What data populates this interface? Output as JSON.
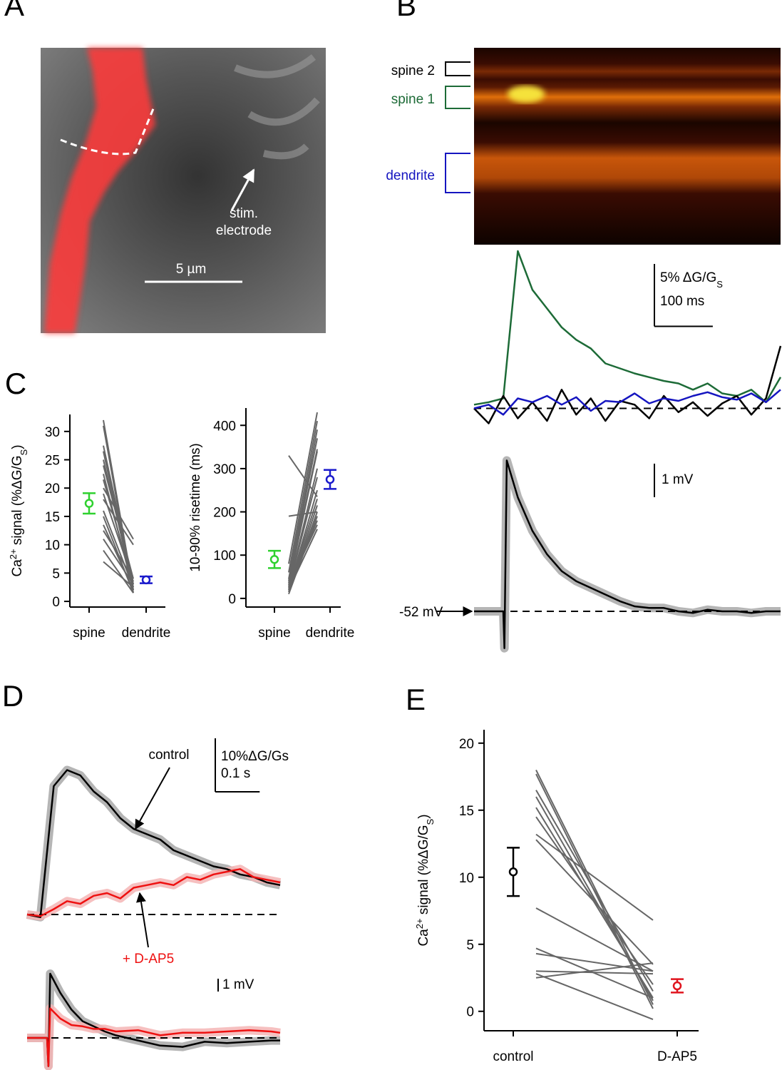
{
  "panel_labels": [
    "A",
    "B",
    "C",
    "D",
    "E"
  ],
  "image_a": {
    "annotation": [
      "stim.",
      "electrode"
    ],
    "scale_bar": "5 µm"
  },
  "image_b": {
    "labels": [
      {
        "text": "spine 2",
        "color": "#000000"
      },
      {
        "text": "spine 1",
        "color": "#1d6b37"
      },
      {
        "text": "dendrite",
        "color": "#1515c0"
      }
    ]
  },
  "chart_data": [
    {
      "type": "trace",
      "x": [
        0,
        25,
        50,
        75,
        100,
        125,
        150,
        175,
        200,
        225,
        250,
        275,
        300,
        325,
        350,
        375,
        400,
        425,
        450,
        475,
        500,
        525
      ],
      "xlim": [
        0,
        525
      ],
      "ylim": [
        -3,
        13
      ],
      "baseline": 0,
      "series": [
        {
          "color": "#1d6b37",
          "values": [
            0.3,
            0.5,
            0.8,
            12.6,
            9.5,
            8,
            6.5,
            5.5,
            4.8,
            3.6,
            3.2,
            2.8,
            2.5,
            2.2,
            2,
            1.5,
            2,
            1.2,
            1,
            1.5,
            0.5,
            2.5
          ]
        },
        {
          "color": "#000000",
          "values": [
            0,
            -1.2,
            1,
            -0.8,
            0.5,
            -1,
            1.5,
            -0.5,
            0.8,
            -1,
            0.6,
            0.3,
            -0.8,
            1,
            -0.3,
            0.5,
            -0.6,
            0.4,
            1,
            -0.5,
            0.8,
            5
          ]
        },
        {
          "color": "#1515c0",
          "values": [
            0,
            0.3,
            -0.5,
            0.8,
            0.5,
            1,
            0.3,
            0.9,
            -0.2,
            0.6,
            0.5,
            1.2,
            0.4,
            0.8,
            0.6,
            1,
            1.3,
            0.9,
            0.7,
            1.2,
            0.5,
            1.5
          ]
        }
      ],
      "scale_bars": {
        "y": {
          "value": 5,
          "label": [
            {
              "text": "5% ΔG/G"
            },
            {
              "text": "S",
              "shift": "sub"
            }
          ]
        },
        "x": {
          "value": 100,
          "label": "100 ms"
        }
      }
    },
    {
      "type": "trace",
      "x": [
        0,
        25,
        45,
        50,
        52,
        56,
        75,
        100,
        125,
        150,
        175,
        200,
        225,
        250,
        275,
        300,
        325,
        350,
        375,
        400,
        425,
        450,
        475,
        500,
        525
      ],
      "xlim": [
        0,
        525
      ],
      "ylim": [
        -53.5,
        -47.5
      ],
      "baseline": {
        "value": -52,
        "label": "-52 mV"
      },
      "series": [
        {
          "color": "#000000",
          "band_color": "#a8a8a8",
          "values": [
            -52,
            -52,
            -52,
            -52,
            -53.1,
            -47.5,
            -48.6,
            -49.6,
            -50.3,
            -50.8,
            -51.1,
            -51.3,
            -51.5,
            -51.7,
            -51.85,
            -51.9,
            -51.9,
            -52,
            -52.05,
            -51.95,
            -52,
            -52,
            -52.05,
            -52,
            -52
          ]
        }
      ],
      "scale_bars": {
        "y": {
          "value": 1,
          "label": "1 mV"
        }
      }
    },
    {
      "type": "paired",
      "categories": [
        "spine",
        "dendrite"
      ],
      "ylim": [
        -1,
        33
      ],
      "yticks": [
        0,
        5,
        10,
        15,
        20,
        25,
        30
      ],
      "ylabel": [
        {
          "text": "Ca"
        },
        {
          "text": "2+",
          "shift": "sup"
        },
        {
          "text": " signal (%ΔG/G"
        },
        {
          "text": "S",
          "shift": "sub"
        },
        {
          "text": ")"
        }
      ],
      "series": [
        {
          "color": "#666666",
          "values": [
            32,
            2
          ]
        },
        {
          "color": "#666666",
          "values": [
            31,
            1.5
          ]
        },
        {
          "color": "#666666",
          "values": [
            27.5,
            3
          ]
        },
        {
          "color": "#666666",
          "values": [
            26.5,
            2
          ]
        },
        {
          "color": "#666666",
          "values": [
            25,
            2.5
          ]
        },
        {
          "color": "#666666",
          "values": [
            24,
            4
          ]
        },
        {
          "color": "#666666",
          "values": [
            22.5,
            2
          ]
        },
        {
          "color": "#666666",
          "values": [
            21.5,
            3
          ]
        },
        {
          "color": "#666666",
          "values": [
            20,
            11
          ]
        },
        {
          "color": "#666666",
          "values": [
            19,
            3.5
          ]
        },
        {
          "color": "#666666",
          "values": [
            18,
            10
          ]
        },
        {
          "color": "#666666",
          "values": [
            16,
            2.5
          ]
        },
        {
          "color": "#666666",
          "values": [
            15,
            1.5
          ]
        },
        {
          "color": "#666666",
          "values": [
            13.5,
            2
          ]
        },
        {
          "color": "#666666",
          "values": [
            12.5,
            4
          ]
        },
        {
          "color": "#666666",
          "values": [
            11,
            3
          ]
        },
        {
          "color": "#666666",
          "values": [
            9,
            1.5
          ]
        },
        {
          "color": "#666666",
          "values": [
            7,
            2.5
          ]
        }
      ],
      "mean": [
        17.3,
        3.8
      ],
      "error": [
        1.8,
        0.6
      ],
      "mean_colors": [
        "#2fd12f",
        "#1a1acc"
      ]
    },
    {
      "type": "paired",
      "categories": [
        "spine",
        "dendrite"
      ],
      "ylim": [
        -20,
        440
      ],
      "yticks": [
        0,
        100,
        200,
        300,
        400
      ],
      "ylabel": [
        {
          "text": "10-90% risetime (ms)"
        }
      ],
      "series": [
        {
          "color": "#666666",
          "values": [
            330,
            235
          ]
        },
        {
          "color": "#666666",
          "values": [
            190,
            200
          ]
        },
        {
          "color": "#666666",
          "values": [
            80,
            430
          ]
        },
        {
          "color": "#666666",
          "values": [
            60,
            410
          ]
        },
        {
          "color": "#666666",
          "values": [
            45,
            390
          ]
        },
        {
          "color": "#666666",
          "values": [
            40,
            370
          ]
        },
        {
          "color": "#666666",
          "values": [
            35,
            345
          ]
        },
        {
          "color": "#666666",
          "values": [
            30,
            340
          ]
        },
        {
          "color": "#666666",
          "values": [
            25,
            300
          ]
        },
        {
          "color": "#666666",
          "values": [
            25,
            280
          ]
        },
        {
          "color": "#666666",
          "values": [
            20,
            250
          ]
        },
        {
          "color": "#666666",
          "values": [
            20,
            230
          ]
        },
        {
          "color": "#666666",
          "values": [
            15,
            215
          ]
        },
        {
          "color": "#666666",
          "values": [
            15,
            200
          ]
        },
        {
          "color": "#666666",
          "values": [
            10,
            190
          ]
        },
        {
          "color": "#666666",
          "values": [
            20,
            180
          ]
        },
        {
          "color": "#666666",
          "values": [
            30,
            170
          ]
        },
        {
          "color": "#666666",
          "values": [
            20,
            160
          ]
        }
      ],
      "mean": [
        90,
        275
      ],
      "error": [
        20,
        22
      ],
      "mean_colors": [
        "#2fd12f",
        "#1a1acc"
      ]
    },
    {
      "type": "trace",
      "x": [
        0,
        30,
        60,
        90,
        120,
        150,
        180,
        210,
        240,
        270,
        300,
        330,
        360,
        390,
        420,
        450,
        480,
        510,
        540,
        570
      ],
      "xlim": [
        0,
        570
      ],
      "ylim": [
        -3,
        32
      ],
      "baseline": 0,
      "series": [
        {
          "name": "control",
          "color": "#000000",
          "band_color": "#a8a8a8",
          "values": [
            0,
            -0.5,
            24,
            27,
            26,
            23,
            21,
            18,
            16,
            15,
            14,
            12,
            11,
            10,
            9,
            8.5,
            7.5,
            7,
            6,
            5.5
          ]
        },
        {
          "name": "+ D-AP5",
          "color": "#ee1111",
          "band_color": "#f5b5b5",
          "values": [
            0,
            -0.3,
            1,
            2.5,
            2,
            3.5,
            4,
            3,
            5,
            5.5,
            6,
            5.5,
            7,
            6.5,
            7.5,
            8,
            8.5,
            7,
            6.5,
            6
          ]
        }
      ],
      "scale_bars": {
        "y": {
          "value": 10,
          "label": "10%ΔG/Gs"
        },
        "x": {
          "value": 100,
          "label": "0.1 s"
        }
      }
    },
    {
      "type": "trace",
      "x": [
        0,
        30,
        45,
        48,
        52,
        75,
        100,
        125,
        150,
        175,
        200,
        250,
        300,
        350,
        400,
        450,
        500,
        550,
        570
      ],
      "xlim": [
        0,
        570
      ],
      "ylim": [
        -2.5,
        6
      ],
      "baseline": 0,
      "series": [
        {
          "color": "#000000",
          "band_color": "#a8a8a8",
          "values": [
            0,
            0,
            0,
            -2.2,
            5,
            3.5,
            2.2,
            1.3,
            0.9,
            0.5,
            0.2,
            -0.2,
            -0.6,
            -0.7,
            -0.3,
            -0.4,
            -0.3,
            -0.2,
            -0.2
          ]
        },
        {
          "color": "#ee1111",
          "band_color": "#f5b5b5",
          "values": [
            0,
            0,
            0,
            -2.2,
            2.3,
            1.5,
            1,
            0.9,
            0.7,
            0.7,
            0.5,
            0.6,
            0.2,
            0.4,
            0.4,
            0.5,
            0.6,
            0.5,
            0.4
          ]
        }
      ],
      "scale_bars": {
        "y": {
          "value": 1,
          "label": "1 mV"
        }
      }
    },
    {
      "type": "paired",
      "categories": [
        "control",
        "D-AP5"
      ],
      "ylim": [
        -1.45,
        21
      ],
      "yticks": [
        0,
        5,
        10,
        15,
        20
      ],
      "ylabel": [
        {
          "text": "Ca"
        },
        {
          "text": "2+",
          "shift": "sup"
        },
        {
          "text": " signal (%ΔG/G"
        },
        {
          "text": "S",
          "shift": "sub"
        },
        {
          "text": ")"
        }
      ],
      "series": [
        {
          "color": "#666666",
          "values": [
            18,
            0.5
          ]
        },
        {
          "color": "#666666",
          "values": [
            17.7,
            0.2
          ]
        },
        {
          "color": "#666666",
          "values": [
            16.5,
            1.5
          ]
        },
        {
          "color": "#666666",
          "values": [
            16,
            0.8
          ]
        },
        {
          "color": "#666666",
          "values": [
            15.2,
            1
          ]
        },
        {
          "color": "#666666",
          "values": [
            14.5,
            2
          ]
        },
        {
          "color": "#666666",
          "values": [
            13.2,
            6.8
          ]
        },
        {
          "color": "#666666",
          "values": [
            12.8,
            3.5
          ]
        },
        {
          "color": "#666666",
          "values": [
            7.7,
            3
          ]
        },
        {
          "color": "#666666",
          "values": [
            4.7,
            1
          ]
        },
        {
          "color": "#666666",
          "values": [
            4.3,
            3
          ]
        },
        {
          "color": "#666666",
          "values": [
            3,
            2.8
          ]
        },
        {
          "color": "#666666",
          "values": [
            2.8,
            -0.6
          ]
        },
        {
          "color": "#666666",
          "values": [
            2.5,
            3.6
          ]
        }
      ],
      "mean": [
        10.4,
        1.9
      ],
      "error": [
        1.8,
        0.5
      ],
      "mean_colors": [
        "#000000",
        "#e0141e"
      ]
    }
  ]
}
